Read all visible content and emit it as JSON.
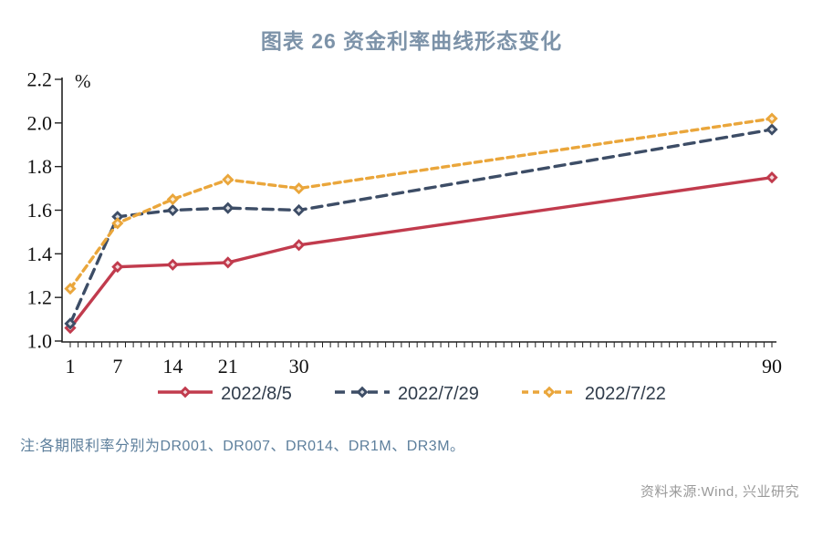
{
  "page": {
    "title": "图表 26 资金利率曲线形态变化",
    "note": "注:各期限利率分别为DR001、DR007、DR014、DR1M、DR3M。",
    "source": "资料来源:Wind, 兴业研究"
  },
  "colors": {
    "title": "#7d93a9",
    "note": "#5d7f9c",
    "source": "#9a9a9a",
    "axis": "#222222"
  },
  "chart_data": {
    "type": "line",
    "title": "图表 26 资金利率曲线形态变化",
    "xlabel": "",
    "ylabel": "%",
    "x": [
      1,
      7,
      14,
      21,
      30,
      90
    ],
    "x_tick_labels": [
      "1",
      "7",
      "14",
      "21",
      "30",
      "90"
    ],
    "x_minor_tick_step": 1,
    "xlim": [
      1,
      90
    ],
    "ylim": [
      1.0,
      2.2
    ],
    "y_ticks": [
      1.0,
      1.2,
      1.4,
      1.6,
      1.8,
      2.0,
      2.2
    ],
    "grid": false,
    "legend_position": "bottom",
    "series": [
      {
        "name": "2022/8/5",
        "color": "#c13b4d",
        "line_style": "solid",
        "dash": [],
        "marker": "diamond",
        "values": [
          1.06,
          1.34,
          1.35,
          1.36,
          1.44,
          1.75
        ]
      },
      {
        "name": "2022/7/29",
        "color": "#3d4d66",
        "line_style": "dashed",
        "dash": [
          11,
          7
        ],
        "marker": "diamond",
        "values": [
          1.08,
          1.57,
          1.6,
          1.61,
          1.6,
          1.97
        ]
      },
      {
        "name": "2022/7/22",
        "color": "#eaa63b",
        "line_style": "dashed",
        "dash": [
          7,
          5
        ],
        "marker": "diamond",
        "values": [
          1.24,
          1.54,
          1.65,
          1.74,
          1.7,
          2.02
        ]
      }
    ]
  }
}
